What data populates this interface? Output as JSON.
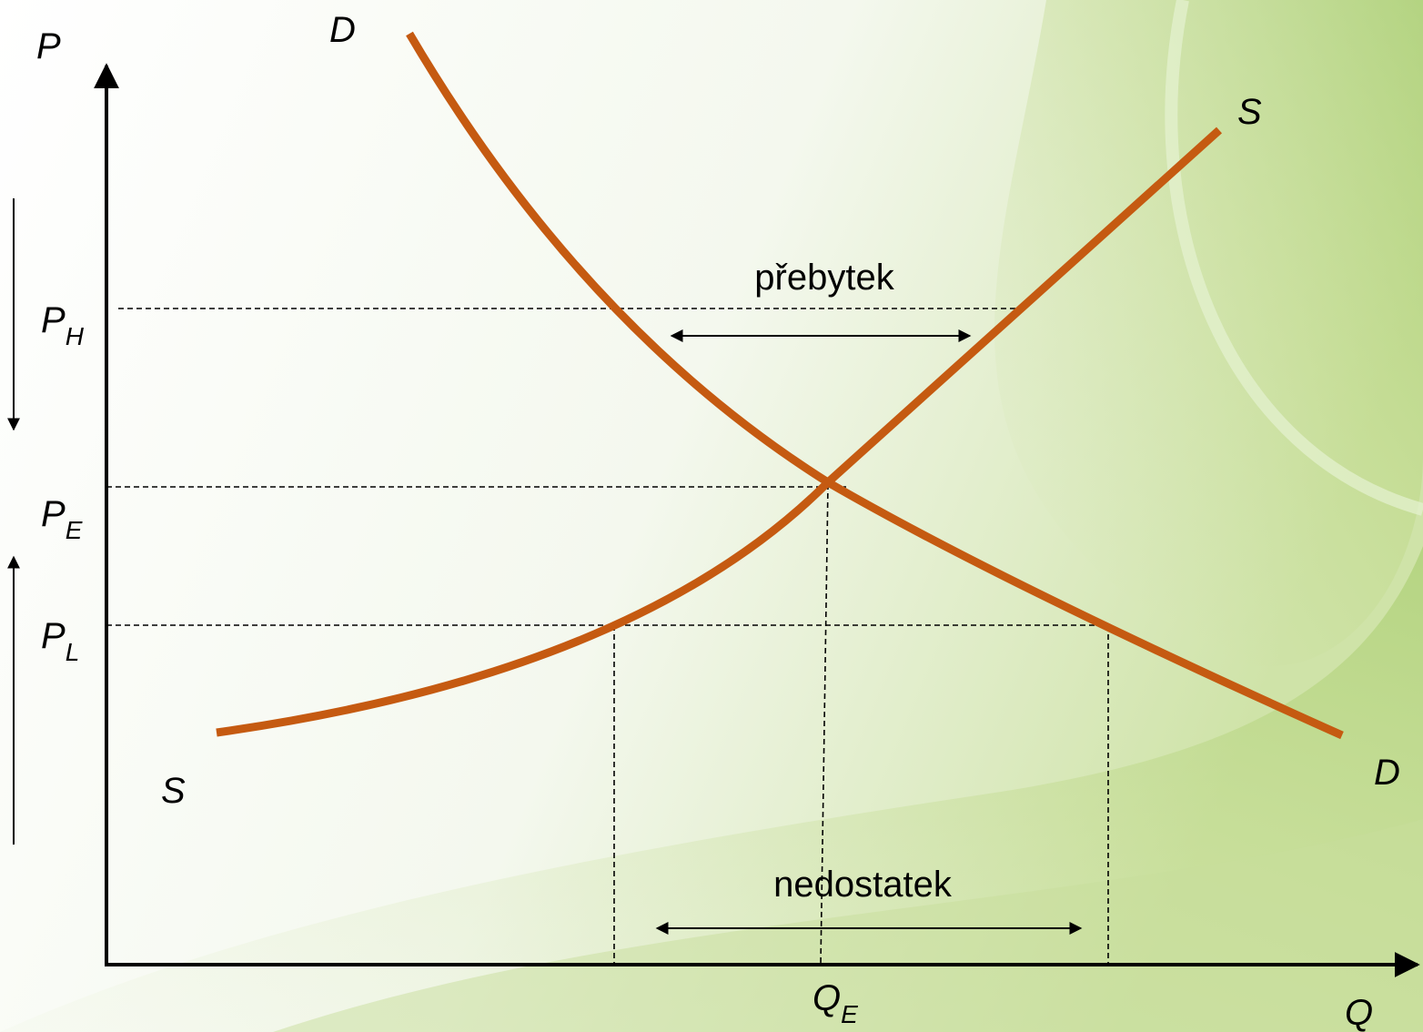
{
  "axes": {
    "y_label": "P",
    "x_label": "Q"
  },
  "curves": {
    "demand_top": "D",
    "demand_bottom": "D",
    "supply_top": "S",
    "supply_bottom": "S"
  },
  "price_levels": {
    "high": {
      "main": "P",
      "sub": "H"
    },
    "equilibrium": {
      "main": "P",
      "sub": "E"
    },
    "low": {
      "main": "P",
      "sub": "L"
    }
  },
  "quantity_levels": {
    "equilibrium": {
      "main": "Q",
      "sub": "E"
    }
  },
  "annotations": {
    "surplus": "přebytek",
    "shortage": "nedostatek"
  }
}
